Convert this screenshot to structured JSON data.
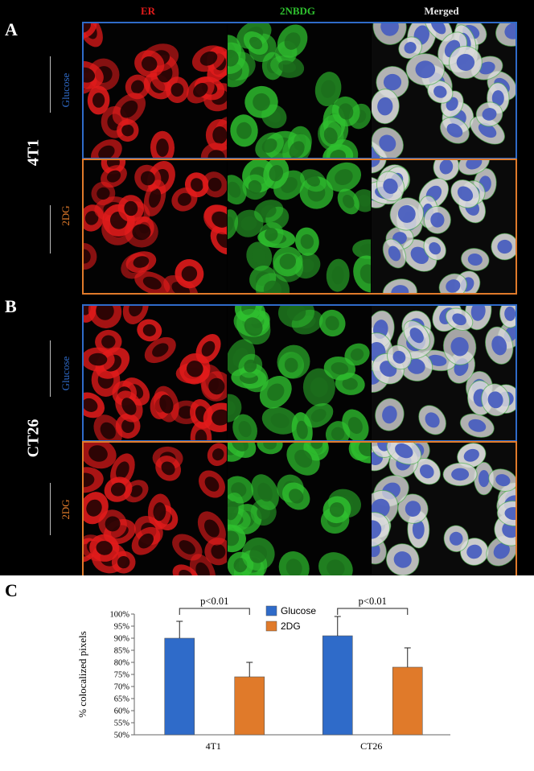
{
  "colors": {
    "er": "#e31b1b",
    "nbdg": "#2fc12f",
    "merged": "#e6e6e6",
    "glucose": "#2f6bc9",
    "twodg": "#e07a2a",
    "glucose_frame": "#2f6bc9",
    "twodg_frame": "#e07a2a"
  },
  "panels": {
    "a_letter": "A",
    "b_letter": "B",
    "c_letter": "C"
  },
  "headers": {
    "er": "ER",
    "nbdg": "2NBDG",
    "merged": "Merged"
  },
  "rows": {
    "a_cell": "4T1",
    "b_cell": "CT26",
    "glucose": "Glucose",
    "twodg": "2DG"
  },
  "chart_data": {
    "type": "bar",
    "categories": [
      "4T1",
      "CT26"
    ],
    "series": [
      {
        "name": "Glucose",
        "values": [
          90,
          91
        ],
        "errors": [
          7,
          8
        ],
        "color": "#2f6bc9"
      },
      {
        "name": "2DG",
        "values": [
          74,
          78
        ],
        "errors": [
          6,
          8
        ],
        "color": "#e07a2a"
      }
    ],
    "ylabel": "% colocalized pixels",
    "ylim": [
      50,
      100
    ],
    "yticks": [
      "50%",
      "55%",
      "60%",
      "65%",
      "70%",
      "75%",
      "80%",
      "85%",
      "90%",
      "95%",
      "100%"
    ],
    "annotations": [
      "p<0.01",
      "p<0.01"
    ],
    "legend_position": "top-center",
    "grid": false
  }
}
